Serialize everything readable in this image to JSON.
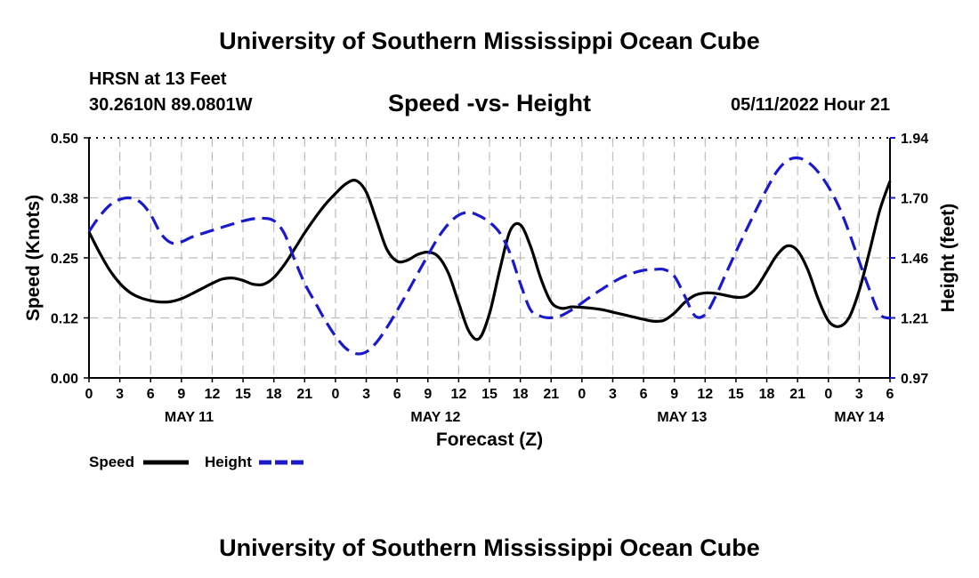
{
  "header": {
    "title": "University of Southern Mississippi Ocean Cube",
    "station": "HRSN at 13 Feet",
    "location": "30.2610N  89.0801W",
    "subtitle": "Speed -vs- Height",
    "datetime": "05/11/2022 Hour 21"
  },
  "footer": {
    "title": "University of Southern Mississippi Ocean Cube"
  },
  "colors": {
    "speed": "#000000",
    "height": "#1a1acc"
  },
  "chart_data": {
    "type": "line",
    "title": "Speed -vs- Height",
    "xlabel": "Forecast (Z)",
    "ylabel": "Speed (Knots)",
    "y2label": "Height (feet)",
    "x_unit": "forecast hours from May 11 00Z",
    "xlim": [
      0,
      78
    ],
    "ylim": [
      0,
      0.5
    ],
    "y2lim": [
      0.97,
      1.94
    ],
    "x_tick_labels": [
      "0",
      "3",
      "6",
      "9",
      "12",
      "15",
      "18",
      "21",
      "0",
      "3",
      "6",
      "9",
      "12",
      "15",
      "18",
      "21",
      "0",
      "3",
      "6",
      "9",
      "12",
      "15",
      "18",
      "21",
      "0",
      "3",
      "6"
    ],
    "y_ticks": [
      {
        "value": 0.0,
        "label": "0.00"
      },
      {
        "value": 0.125,
        "label": "0.12"
      },
      {
        "value": 0.25,
        "label": "0.25"
      },
      {
        "value": 0.375,
        "label": "0.38"
      },
      {
        "value": 0.5,
        "label": "0.50"
      }
    ],
    "y2_ticks": [
      {
        "value": 0.97,
        "label": "0.97"
      },
      {
        "value": 1.2125,
        "label": "1.21"
      },
      {
        "value": 1.455,
        "label": "1.46"
      },
      {
        "value": 1.6975,
        "label": "1.70"
      },
      {
        "value": 1.94,
        "label": "1.94"
      }
    ],
    "day_labels": [
      {
        "label": "MAY 11",
        "hour": 9.75
      },
      {
        "label": "MAY 12",
        "hour": 33.75
      },
      {
        "label": "MAY 13",
        "hour": 57.75
      },
      {
        "label": "MAY 14",
        "hour": 75
      }
    ],
    "legend_position": "bottom-left",
    "series": [
      {
        "name": "Speed",
        "axis": "left",
        "x": [
          0,
          1,
          2,
          3,
          4,
          5,
          6,
          7,
          8,
          9,
          10,
          11,
          12,
          13,
          14,
          15,
          16,
          17,
          18,
          19,
          20,
          21,
          22,
          23,
          24,
          25,
          26,
          27,
          28,
          29,
          30,
          31,
          32,
          33,
          34,
          35,
          36,
          37,
          38,
          39,
          40,
          41,
          42,
          43,
          44,
          45,
          46,
          47,
          48,
          49,
          50,
          51,
          52,
          53,
          54,
          55,
          56,
          57,
          58,
          59,
          60,
          61,
          62,
          63,
          64,
          65,
          66,
          67,
          68,
          69,
          70,
          71,
          72,
          73,
          74,
          75,
          76,
          77,
          78
        ],
        "values": [
          0.304,
          0.262,
          0.225,
          0.197,
          0.178,
          0.167,
          0.161,
          0.158,
          0.159,
          0.165,
          0.175,
          0.186,
          0.197,
          0.206,
          0.208,
          0.203,
          0.195,
          0.195,
          0.209,
          0.235,
          0.268,
          0.302,
          0.333,
          0.361,
          0.384,
          0.404,
          0.411,
          0.387,
          0.328,
          0.268,
          0.243,
          0.245,
          0.257,
          0.262,
          0.253,
          0.218,
          0.156,
          0.097,
          0.082,
          0.134,
          0.225,
          0.306,
          0.319,
          0.274,
          0.207,
          0.158,
          0.145,
          0.148,
          0.147,
          0.145,
          0.142,
          0.137,
          0.132,
          0.127,
          0.122,
          0.118,
          0.12,
          0.135,
          0.157,
          0.172,
          0.177,
          0.176,
          0.172,
          0.168,
          0.17,
          0.188,
          0.222,
          0.256,
          0.275,
          0.265,
          0.225,
          0.165,
          0.119,
          0.107,
          0.125,
          0.182,
          0.263,
          0.349,
          0.41
        ]
      },
      {
        "name": "Height",
        "axis": "right",
        "x": [
          0,
          1,
          2,
          3,
          4,
          5,
          6,
          7,
          8,
          9,
          10,
          11,
          12,
          13,
          14,
          15,
          16,
          17,
          18,
          19,
          20,
          21,
          22,
          23,
          24,
          25,
          26,
          27,
          28,
          29,
          30,
          31,
          32,
          33,
          34,
          35,
          36,
          37,
          38,
          39,
          40,
          41,
          42,
          43,
          44,
          45,
          46,
          47,
          48,
          49,
          50,
          51,
          52,
          53,
          54,
          55,
          56,
          57,
          58,
          59,
          60,
          61,
          62,
          63,
          64,
          65,
          66,
          67,
          68,
          69,
          70,
          71,
          72,
          73,
          74,
          75,
          76,
          77,
          78
        ],
        "values": [
          1.562,
          1.621,
          1.667,
          1.691,
          1.697,
          1.68,
          1.63,
          1.553,
          1.516,
          1.52,
          1.539,
          1.553,
          1.566,
          1.579,
          1.592,
          1.604,
          1.613,
          1.615,
          1.605,
          1.555,
          1.45,
          1.352,
          1.277,
          1.203,
          1.139,
          1.09,
          1.068,
          1.075,
          1.114,
          1.173,
          1.242,
          1.315,
          1.391,
          1.465,
          1.537,
          1.592,
          1.628,
          1.639,
          1.625,
          1.599,
          1.556,
          1.474,
          1.352,
          1.245,
          1.219,
          1.213,
          1.222,
          1.245,
          1.273,
          1.303,
          1.33,
          1.356,
          1.378,
          1.394,
          1.405,
          1.408,
          1.408,
          1.381,
          1.302,
          1.221,
          1.226,
          1.298,
          1.389,
          1.48,
          1.567,
          1.652,
          1.733,
          1.805,
          1.848,
          1.859,
          1.842,
          1.802,
          1.742,
          1.664,
          1.56,
          1.441,
          1.327,
          1.228,
          1.211
        ]
      }
    ]
  }
}
